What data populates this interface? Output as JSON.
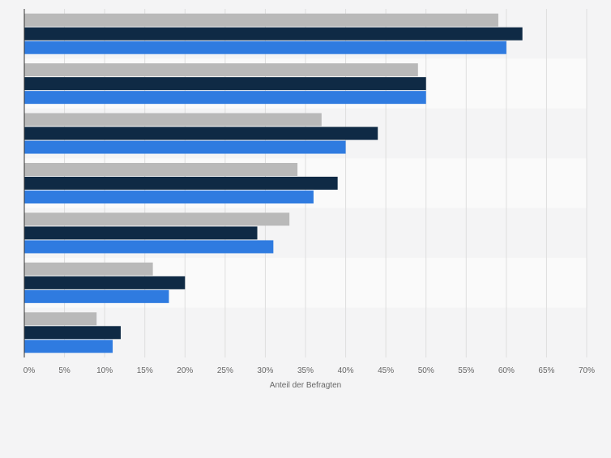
{
  "chart_data": {
    "type": "bar",
    "orientation": "horizontal",
    "xlabel": "Anteil der Befragten",
    "xlim": [
      0,
      70
    ],
    "ticks": [
      "0%",
      "5%",
      "10%",
      "15%",
      "20%",
      "25%",
      "30%",
      "35%",
      "40%",
      "45%",
      "50%",
      "55%",
      "60%",
      "65%",
      "70%"
    ],
    "tick_values": [
      0,
      5,
      10,
      15,
      20,
      25,
      30,
      35,
      40,
      45,
      50,
      55,
      60,
      65,
      70
    ],
    "grid": true,
    "categories": [
      "",
      "",
      "",
      "",
      "",
      "",
      ""
    ],
    "series": [
      {
        "color": "#b9b9b9",
        "values": [
          59,
          49,
          37,
          34,
          33,
          16,
          9
        ]
      },
      {
        "color": "#0f2a45",
        "values": [
          62,
          50,
          44,
          39,
          29,
          20,
          12
        ]
      },
      {
        "color": "#2f7be0",
        "values": [
          60,
          50,
          40,
          36,
          31,
          18,
          11
        ]
      }
    ]
  }
}
